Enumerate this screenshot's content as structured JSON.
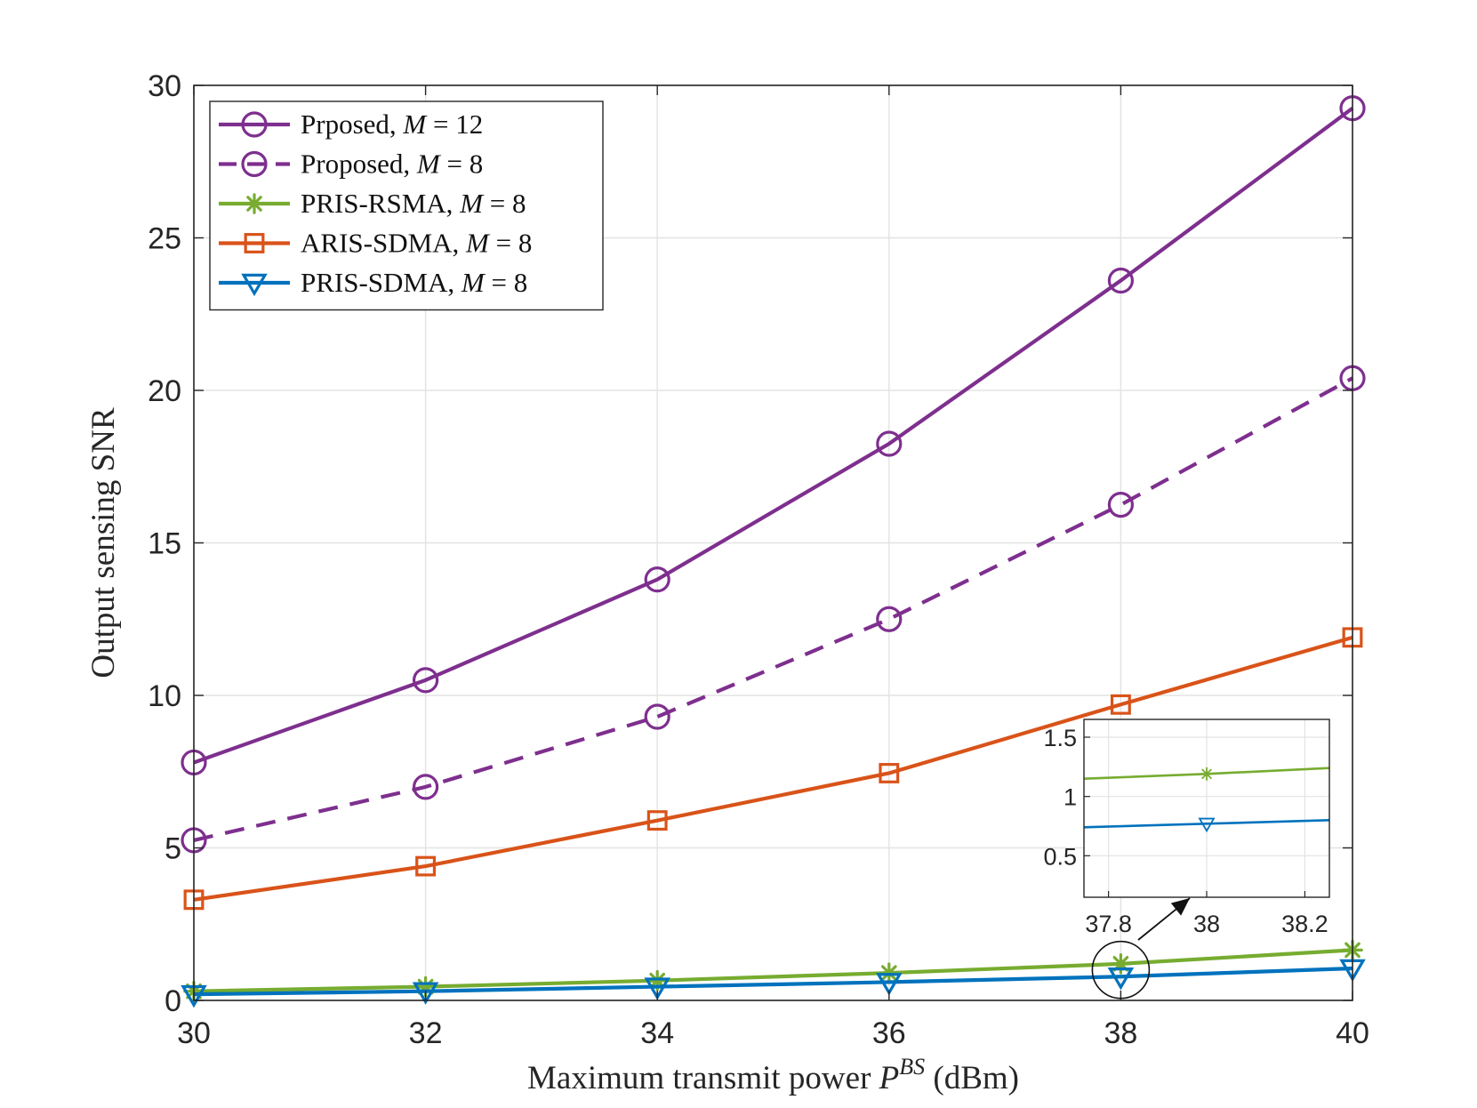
{
  "chart_data": {
    "type": "line",
    "title": "",
    "xlabel": {
      "prefix": "Maximum transmit power ",
      "symbol": "P",
      "superscript": "BS",
      "suffix": " (dBm)"
    },
    "ylabel": "Output sensing SNR",
    "x": [
      30,
      32,
      34,
      36,
      38,
      40
    ],
    "xlim": [
      30,
      40
    ],
    "ylim": [
      0,
      30
    ],
    "xticks": [
      "30",
      "32",
      "34",
      "36",
      "38",
      "40"
    ],
    "yticks": [
      "0",
      "5",
      "10",
      "15",
      "20",
      "25",
      "30"
    ],
    "grid": true,
    "legend_position": "top-left",
    "series": [
      {
        "name": "Prposed, M = 12",
        "label_text": "Prposed, ",
        "label_var": "M",
        "label_eq": " = 12",
        "color": "#7E2F8E",
        "dash": "solid",
        "marker": "circle",
        "values": [
          7.8,
          10.5,
          13.8,
          18.25,
          23.6,
          29.25
        ]
      },
      {
        "name": "Proposed, M = 8",
        "label_text": "Proposed, ",
        "label_var": "M",
        "label_eq": " = 8",
        "color": "#7E2F8E",
        "dash": "dashed",
        "marker": "circle",
        "values": [
          5.25,
          7.0,
          9.3,
          12.5,
          16.25,
          20.4
        ]
      },
      {
        "name": "PRIS-RSMA, M = 8",
        "label_text": "PRIS-RSMA, ",
        "label_var": "M",
        "label_eq": " = 8",
        "color": "#77AC30",
        "dash": "solid",
        "marker": "asterisk",
        "values": [
          0.3,
          0.45,
          0.65,
          0.9,
          1.2,
          1.65
        ]
      },
      {
        "name": "ARIS-SDMA, M = 8",
        "label_text": "ARIS-SDMA, ",
        "label_var": "M",
        "label_eq": " = 8",
        "color": "#D95319",
        "dash": "solid",
        "marker": "square",
        "values": [
          3.3,
          4.4,
          5.9,
          7.45,
          9.7,
          11.9
        ]
      },
      {
        "name": "PRIS-SDMA, M = 8",
        "label_text": "PRIS-SDMA, ",
        "label_var": "M",
        "label_eq": " = 8",
        "color": "#0072BD",
        "dash": "solid",
        "marker": "triangle",
        "values": [
          0.2,
          0.3,
          0.45,
          0.6,
          0.78,
          1.05
        ]
      }
    ],
    "inset": {
      "xlim": [
        37.75,
        38.25
      ],
      "ylim": [
        0.15,
        1.65
      ],
      "xticks": [
        "37.8",
        "38",
        "38.2"
      ],
      "yticks": [
        "0.5",
        "1",
        "1.5"
      ],
      "xtick_values": [
        37.8,
        38,
        38.2
      ],
      "ytick_values": [
        0.5,
        1,
        1.5
      ],
      "series": [
        {
          "name": "PRIS-RSMA, M = 8",
          "color": "#77AC30",
          "marker": "asterisk",
          "x": [
            37.75,
            38,
            38.25
          ],
          "values": [
            1.15,
            1.19,
            1.24
          ],
          "marker_x": 38
        },
        {
          "name": "PRIS-SDMA, M = 8",
          "color": "#0072BD",
          "marker": "triangle",
          "x": [
            37.75,
            38,
            38.25
          ],
          "values": [
            0.74,
            0.77,
            0.8
          ],
          "marker_x": 38
        }
      ],
      "zoom_center": {
        "x": 38,
        "y": 1.0
      }
    }
  }
}
